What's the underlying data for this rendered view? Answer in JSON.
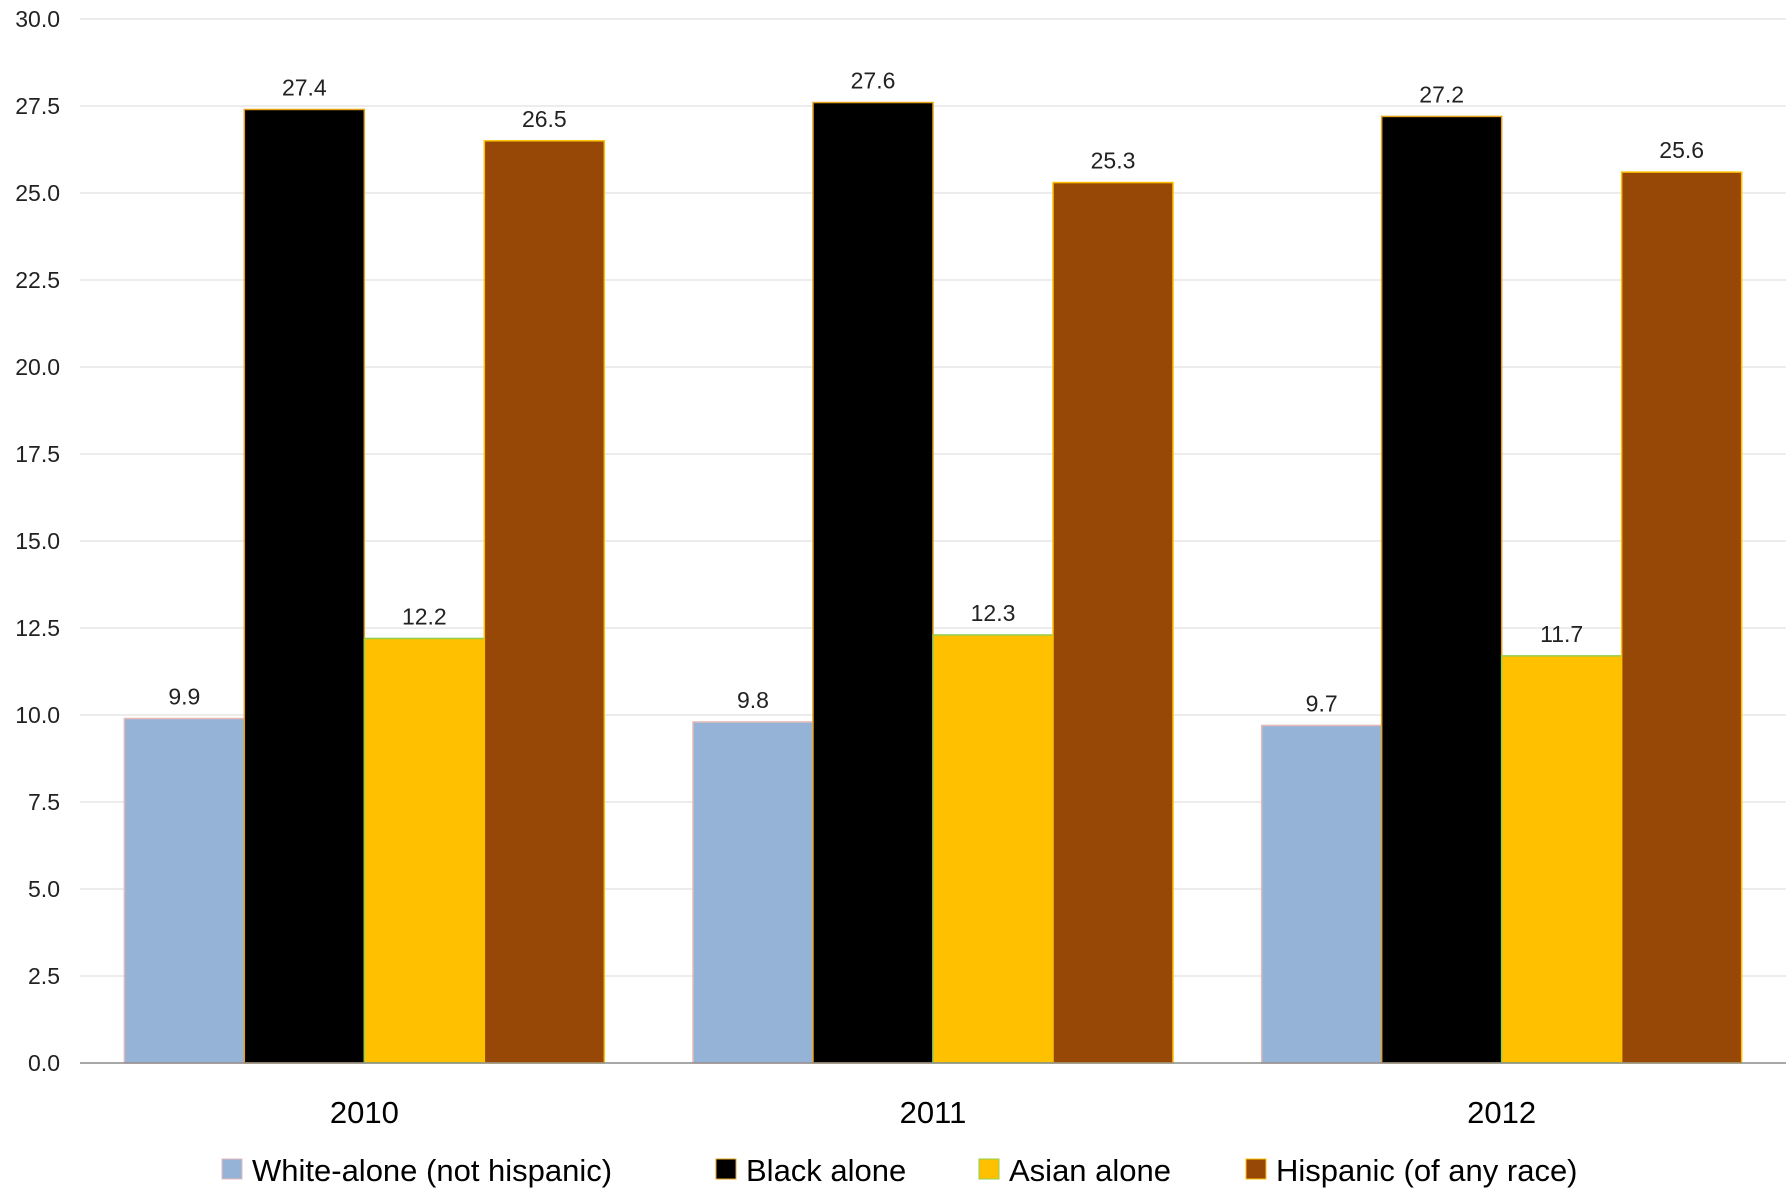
{
  "chart_data": {
    "type": "bar",
    "categories": [
      "2010",
      "2011",
      "2012"
    ],
    "series": [
      {
        "name": "White-alone (not hispanic)",
        "values": [
          9.9,
          9.8,
          9.7
        ],
        "color": "#95B3D7",
        "stroke": "#E6B9B8"
      },
      {
        "name": "Black alone",
        "values": [
          27.4,
          27.6,
          27.2
        ],
        "color": "#000000",
        "stroke": "#E4A11B"
      },
      {
        "name": "Asian alone",
        "values": [
          12.2,
          12.3,
          11.7
        ],
        "color": "#FFC000",
        "stroke": "#92D050"
      },
      {
        "name": "Hispanic (of any race)",
        "values": [
          26.5,
          25.3,
          25.6
        ],
        "color": "#974706",
        "stroke": "#FFC000"
      }
    ],
    "yticks": [
      "0.0",
      "2.5",
      "5.0",
      "7.5",
      "10.0",
      "12.5",
      "15.0",
      "17.5",
      "20.0",
      "22.5",
      "25.0",
      "27.5",
      "30.0"
    ],
    "ylim": [
      0,
      30
    ],
    "grid": true,
    "legend_position": "bottom"
  }
}
